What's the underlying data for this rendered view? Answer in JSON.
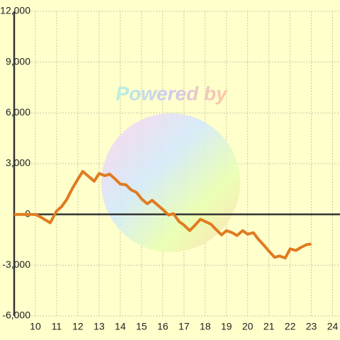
{
  "chart_data": {
    "type": "line",
    "watermark": "Powered by",
    "x": [
      9,
      10,
      10.3,
      10.7,
      11,
      11.23,
      11.47,
      11.73,
      12,
      12.23,
      12.5,
      12.77,
      13,
      13.27,
      13.5,
      13.77,
      14,
      14.27,
      14.5,
      14.77,
      15,
      15.27,
      15.5,
      15.77,
      16,
      16.27,
      16.5,
      16.77,
      17,
      17.27,
      17.5,
      17.77,
      18,
      18.27,
      18.5,
      18.77,
      19,
      19.27,
      19.5,
      19.77,
      20,
      20.27,
      20.5,
      20.77,
      21,
      21.27,
      21.5,
      21.77,
      22,
      22.27,
      22.5,
      22.77,
      23
    ],
    "series": [
      {
        "color": "#e07b20",
        "values": [
          0,
          0,
          -200,
          -500,
          200,
          450,
          870,
          1500,
          2080,
          2540,
          2250,
          1960,
          2420,
          2290,
          2380,
          2080,
          1790,
          1750,
          1460,
          1290,
          920,
          630,
          830,
          540,
          290,
          -40,
          40,
          -420,
          -630,
          -960,
          -670,
          -290,
          -420,
          -580,
          -880,
          -1210,
          -960,
          -1080,
          -1250,
          -960,
          -1170,
          -1080,
          -1460,
          -1830,
          -2170,
          -2540,
          -2460,
          -2580,
          -2040,
          -2130,
          -1960,
          -1790,
          -1750
        ]
      }
    ],
    "xlim": [
      9,
      24.35
    ],
    "xticks": [
      10,
      11,
      12,
      13,
      14,
      15,
      16,
      17,
      18,
      19,
      20,
      21,
      22,
      23,
      24
    ],
    "ylim": [
      -6000,
      12000
    ],
    "yticks": [
      {
        "value": -6000,
        "label": "-6,000"
      },
      {
        "value": -3000,
        "label": "-3,000"
      },
      0,
      {
        "value": 3000,
        "label": "3,000"
      },
      {
        "value": 6000,
        "label": "6,000"
      },
      {
        "value": 9000,
        "label": "9,000"
      },
      {
        "value": 12000,
        "label": "12,000"
      }
    ],
    "grid": true
  }
}
